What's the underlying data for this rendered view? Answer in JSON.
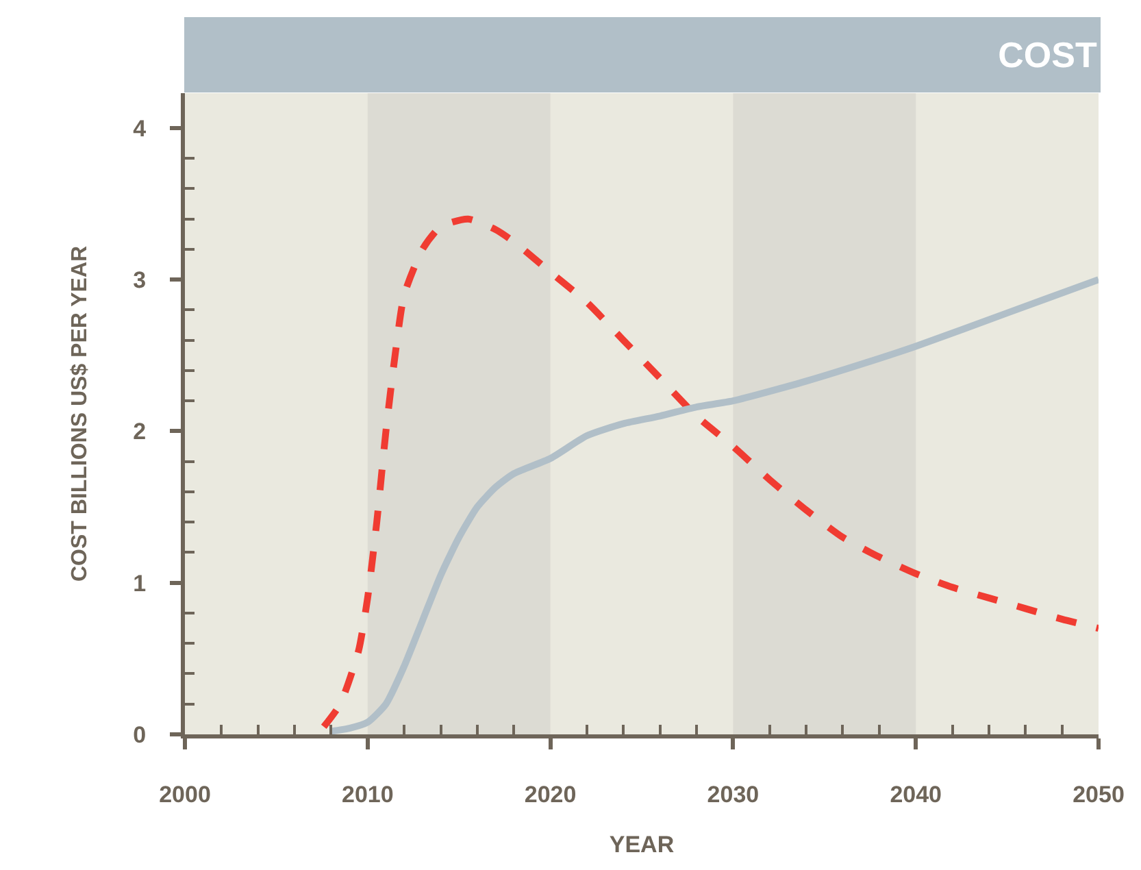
{
  "chart_data": {
    "type": "line",
    "title": "COST",
    "xlabel": "YEAR",
    "ylabel": "COST BILLIONS US$ PER YEAR",
    "series": [
      {
        "color": "#f03c32",
        "line_style": "dashed",
        "x": [
          2007.6,
          2008.5,
          2009.5,
          2010,
          2010.5,
          2011,
          2011.5,
          2012,
          2013,
          2014,
          2015.5,
          2017,
          2018,
          2020,
          2022,
          2024,
          2026,
          2028,
          2030,
          2032,
          2034,
          2036,
          2038,
          2040,
          2042,
          2044,
          2046,
          2048,
          2050
        ],
        "values": [
          0.05,
          0.2,
          0.55,
          0.9,
          1.4,
          2.0,
          2.5,
          2.9,
          3.2,
          3.35,
          3.4,
          3.33,
          3.25,
          3.05,
          2.85,
          2.6,
          2.35,
          2.1,
          1.9,
          1.68,
          1.48,
          1.3,
          1.17,
          1.06,
          0.97,
          0.9,
          0.83,
          0.76,
          0.7
        ]
      },
      {
        "color": "#b1bfc8",
        "line_style": "solid",
        "x": [
          2008,
          2009,
          2010,
          2011,
          2012,
          2013,
          2014,
          2015,
          2016,
          2017,
          2018,
          2020,
          2022,
          2024,
          2026,
          2028,
          2030,
          2034,
          2038,
          2040,
          2045,
          2050
        ],
        "values": [
          0.02,
          0.04,
          0.08,
          0.2,
          0.45,
          0.75,
          1.05,
          1.3,
          1.5,
          1.63,
          1.72,
          1.82,
          1.97,
          2.05,
          2.1,
          2.16,
          2.2,
          2.33,
          2.48,
          2.56,
          2.78,
          3.0
        ]
      }
    ],
    "bands": [
      {
        "axis": "x",
        "from": 2010,
        "to": 2020,
        "color": "#dcdbd3"
      },
      {
        "axis": "x",
        "from": 2030,
        "to": 2040,
        "color": "#dcdbd3"
      }
    ],
    "xlim": [
      2000,
      2050
    ],
    "ylim": [
      0,
      4.23
    ],
    "xticks": [
      2000,
      {
        "value": 2002,
        "label": null
      },
      {
        "value": 2004,
        "label": null
      },
      {
        "value": 2006,
        "label": null
      },
      {
        "value": 2008,
        "label": null
      },
      2010,
      {
        "value": 2012,
        "label": null
      },
      {
        "value": 2014,
        "label": null
      },
      {
        "value": 2016,
        "label": null
      },
      {
        "value": 2018,
        "label": null
      },
      2020,
      {
        "value": 2022,
        "label": null
      },
      {
        "value": 2024,
        "label": null
      },
      {
        "value": 2026,
        "label": null
      },
      {
        "value": 2028,
        "label": null
      },
      2030,
      {
        "value": 2032,
        "label": null
      },
      {
        "value": 2034,
        "label": null
      },
      {
        "value": 2036,
        "label": null
      },
      {
        "value": 2038,
        "label": null
      },
      2040,
      {
        "value": 2042,
        "label": null
      },
      {
        "value": 2044,
        "label": null
      },
      {
        "value": 2046,
        "label": null
      },
      {
        "value": 2048,
        "label": null
      },
      2050
    ],
    "yticks": [
      0,
      {
        "value": 0.2,
        "label": null
      },
      {
        "value": 0.4,
        "label": null
      },
      {
        "value": 0.6,
        "label": null
      },
      {
        "value": 0.8,
        "label": null
      },
      1,
      {
        "value": 1.2,
        "label": null
      },
      {
        "value": 1.4,
        "label": null
      },
      {
        "value": 1.6,
        "label": null
      },
      {
        "value": 1.8,
        "label": null
      },
      2,
      {
        "value": 2.2,
        "label": null
      },
      {
        "value": 2.4,
        "label": null
      },
      {
        "value": 2.6,
        "label": null
      },
      {
        "value": 2.8,
        "label": null
      },
      3,
      {
        "value": 3.2,
        "label": null
      },
      {
        "value": 3.4,
        "label": null
      },
      {
        "value": 3.6,
        "label": null
      },
      {
        "value": 3.8,
        "label": null
      },
      4
    ],
    "grid": false,
    "marker": "none"
  }
}
